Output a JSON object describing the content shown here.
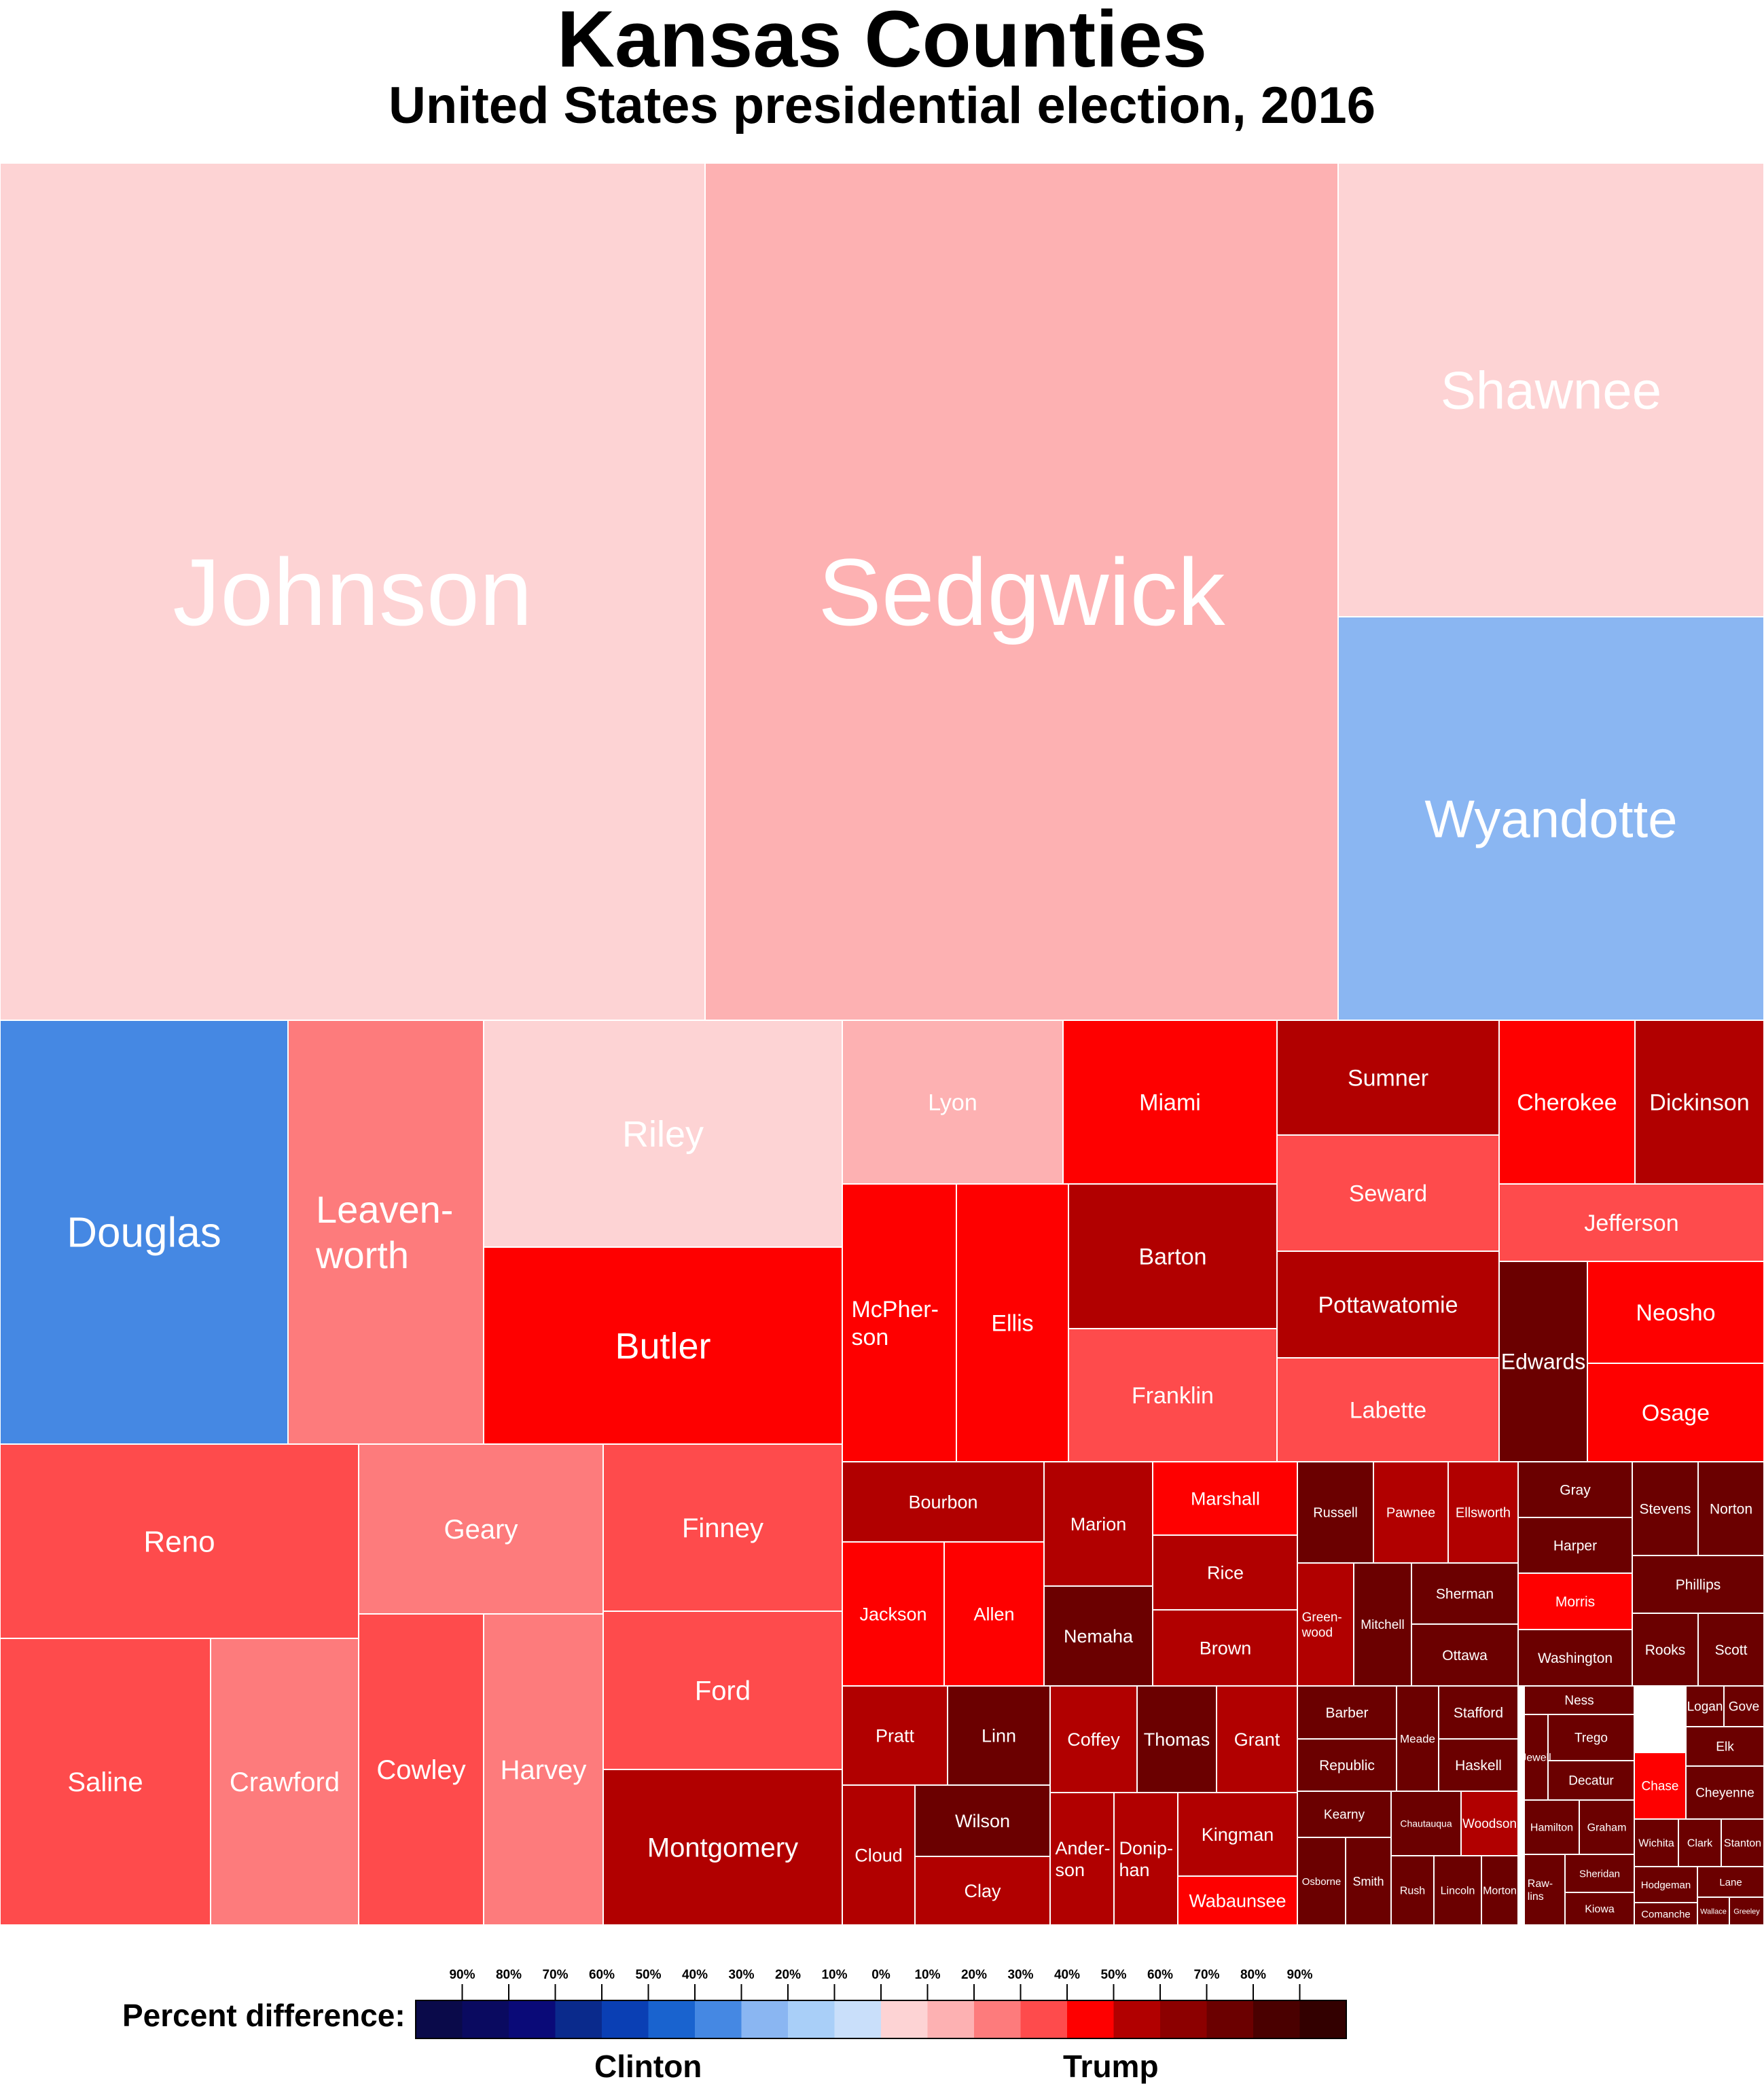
{
  "title": "Kansas Counties",
  "subtitle": "United States presidential election, 2016",
  "chart_data": {
    "type": "treemap",
    "title": "Kansas Counties",
    "subtitle": "United States presidential election, 2016",
    "value_description": "rectangle area proportional to votes cast; color = percent difference",
    "colors": {
      "R10": "#fdd3d4",
      "R20": "#fdb1b2",
      "R30": "#fd7b7c",
      "R40": "#fe4b4c",
      "R50": "#fe0000",
      "R60": "#b10000",
      "R70": "#8c0000",
      "R80": "#6b0000",
      "D20": "#8ab6f2",
      "D40": "#4588e3"
    },
    "counties": [
      {
        "name": "Johnson",
        "color": "R10"
      },
      {
        "name": "Sedgwick",
        "color": "R20"
      },
      {
        "name": "Shawnee",
        "color": "R10"
      },
      {
        "name": "Wyandotte",
        "color": "D20"
      },
      {
        "name": "Douglas",
        "color": "D40"
      },
      {
        "name": "Leaven-\nworth",
        "color": "R30"
      },
      {
        "name": "Riley",
        "color": "R10"
      },
      {
        "name": "Butler",
        "color": "R50"
      },
      {
        "name": "Lyon",
        "color": "R20"
      },
      {
        "name": "Miami",
        "color": "R50"
      },
      {
        "name": "Sumner",
        "color": "R60"
      },
      {
        "name": "Cherokee",
        "color": "R50"
      },
      {
        "name": "Dickinson",
        "color": "R60"
      },
      {
        "name": "Seward",
        "color": "R40"
      },
      {
        "name": "Jefferson",
        "color": "R40"
      },
      {
        "name": "McPher-\nson",
        "color": "R50"
      },
      {
        "name": "Ellis",
        "color": "R50"
      },
      {
        "name": "Barton",
        "color": "R60"
      },
      {
        "name": "Pottawatomie",
        "color": "R60"
      },
      {
        "name": "Edwards",
        "color": "R80"
      },
      {
        "name": "Neosho",
        "color": "R50"
      },
      {
        "name": "Franklin",
        "color": "R40"
      },
      {
        "name": "Labette",
        "color": "R40"
      },
      {
        "name": "Osage",
        "color": "R50"
      },
      {
        "name": "Reno",
        "color": "R40"
      },
      {
        "name": "Geary",
        "color": "R30"
      },
      {
        "name": "Finney",
        "color": "R40"
      },
      {
        "name": "Saline",
        "color": "R40"
      },
      {
        "name": "Crawford",
        "color": "R30"
      },
      {
        "name": "Cowley",
        "color": "R40"
      },
      {
        "name": "Harvey",
        "color": "R30"
      },
      {
        "name": "Ford",
        "color": "R40"
      },
      {
        "name": "Montgomery",
        "color": "R60"
      },
      {
        "name": "Bourbon",
        "color": "R60"
      },
      {
        "name": "Marion",
        "color": "R60"
      },
      {
        "name": "Marshall",
        "color": "R50"
      },
      {
        "name": "Jackson",
        "color": "R50"
      },
      {
        "name": "Allen",
        "color": "R50"
      },
      {
        "name": "Rice",
        "color": "R60"
      },
      {
        "name": "Nemaha",
        "color": "R80"
      },
      {
        "name": "Brown",
        "color": "R60"
      },
      {
        "name": "Pratt",
        "color": "R60"
      },
      {
        "name": "Linn",
        "color": "R80"
      },
      {
        "name": "Coffey",
        "color": "R60"
      },
      {
        "name": "Thomas",
        "color": "R80"
      },
      {
        "name": "Grant",
        "color": "R60"
      },
      {
        "name": "Cloud",
        "color": "R60"
      },
      {
        "name": "Wilson",
        "color": "R80"
      },
      {
        "name": "Clay",
        "color": "R60"
      },
      {
        "name": "Ander-\nson",
        "color": "R60"
      },
      {
        "name": "Donip-\nhan",
        "color": "R60"
      },
      {
        "name": "Kingman",
        "color": "R60"
      },
      {
        "name": "Wabaunsee",
        "color": "R50"
      },
      {
        "name": "Russell",
        "color": "R80"
      },
      {
        "name": "Pawnee",
        "color": "R60"
      },
      {
        "name": "Ellsworth",
        "color": "R60"
      },
      {
        "name": "Gray",
        "color": "R80"
      },
      {
        "name": "Stevens",
        "color": "R80"
      },
      {
        "name": "Norton",
        "color": "R80"
      },
      {
        "name": "Harper",
        "color": "R80"
      },
      {
        "name": "Phillips",
        "color": "R80"
      },
      {
        "name": "Green-\nwood",
        "color": "R60"
      },
      {
        "name": "Mitchell",
        "color": "R80"
      },
      {
        "name": "Sherman",
        "color": "R80"
      },
      {
        "name": "Morris",
        "color": "R50"
      },
      {
        "name": "Ottawa",
        "color": "R80"
      },
      {
        "name": "Washington",
        "color": "R80"
      },
      {
        "name": "Rooks",
        "color": "R80"
      },
      {
        "name": "Scott",
        "color": "R80"
      },
      {
        "name": "Barber",
        "color": "R80"
      },
      {
        "name": "Meade",
        "color": "R80"
      },
      {
        "name": "Stafford",
        "color": "R80"
      },
      {
        "name": "Ness",
        "color": "R80"
      },
      {
        "name": "Logan",
        "color": "R80"
      },
      {
        "name": "Gove",
        "color": "R80"
      },
      {
        "name": "Trego",
        "color": "R80"
      },
      {
        "name": "Elk",
        "color": "R80"
      },
      {
        "name": "Republic",
        "color": "R80"
      },
      {
        "name": "Haskell",
        "color": "R80"
      },
      {
        "name": "Jewell",
        "color": "R80"
      },
      {
        "name": "Chase",
        "color": "R50"
      },
      {
        "name": "Decatur",
        "color": "R80"
      },
      {
        "name": "Cheyenne",
        "color": "R80"
      },
      {
        "name": "Kearny",
        "color": "R80"
      },
      {
        "name": "Chautauqua",
        "color": "R80"
      },
      {
        "name": "Woodson",
        "color": "R60"
      },
      {
        "name": "Hamilton",
        "color": "R80"
      },
      {
        "name": "Graham",
        "color": "R80"
      },
      {
        "name": "Wichita",
        "color": "R80"
      },
      {
        "name": "Clark",
        "color": "R80"
      },
      {
        "name": "Stanton",
        "color": "R80"
      },
      {
        "name": "Osborne",
        "color": "R80"
      },
      {
        "name": "Smith",
        "color": "R80"
      },
      {
        "name": "Rush",
        "color": "R80"
      },
      {
        "name": "Lincoln",
        "color": "R80"
      },
      {
        "name": "Morton",
        "color": "R80"
      },
      {
        "name": "Raw-\nlins",
        "color": "R80"
      },
      {
        "name": "Sheridan",
        "color": "R80"
      },
      {
        "name": "Hodgeman",
        "color": "R80"
      },
      {
        "name": "Lane",
        "color": "R80"
      },
      {
        "name": "Kiowa",
        "color": "R80"
      },
      {
        "name": "Comanche",
        "color": "R80"
      },
      {
        "name": "Wallace",
        "color": "R80"
      },
      {
        "name": "Greeley",
        "color": "R80"
      }
    ]
  },
  "legend": {
    "label": "Percent difference:",
    "left_candidate": "Clinton",
    "right_candidate": "Trump",
    "ticks": [
      "90%",
      "80%",
      "70%",
      "60%",
      "50%",
      "40%",
      "30%",
      "20%",
      "10%",
      "0%",
      "10%",
      "20%",
      "30%",
      "40%",
      "50%",
      "60%",
      "70%",
      "80%",
      "90%"
    ],
    "swatches": [
      "#0a0a4a",
      "#0a0a60",
      "#0a0a78",
      "#0a2a8c",
      "#0a3fb4",
      "#1963cf",
      "#4588e3",
      "#8ab6f2",
      "#a9cff8",
      "#c9dffa",
      "#fdd3d4",
      "#fdb1b2",
      "#fd7b7c",
      "#fe4b4c",
      "#fe0000",
      "#b10000",
      "#8c0000",
      "#6b0000",
      "#4a0000",
      "#330000"
    ]
  }
}
